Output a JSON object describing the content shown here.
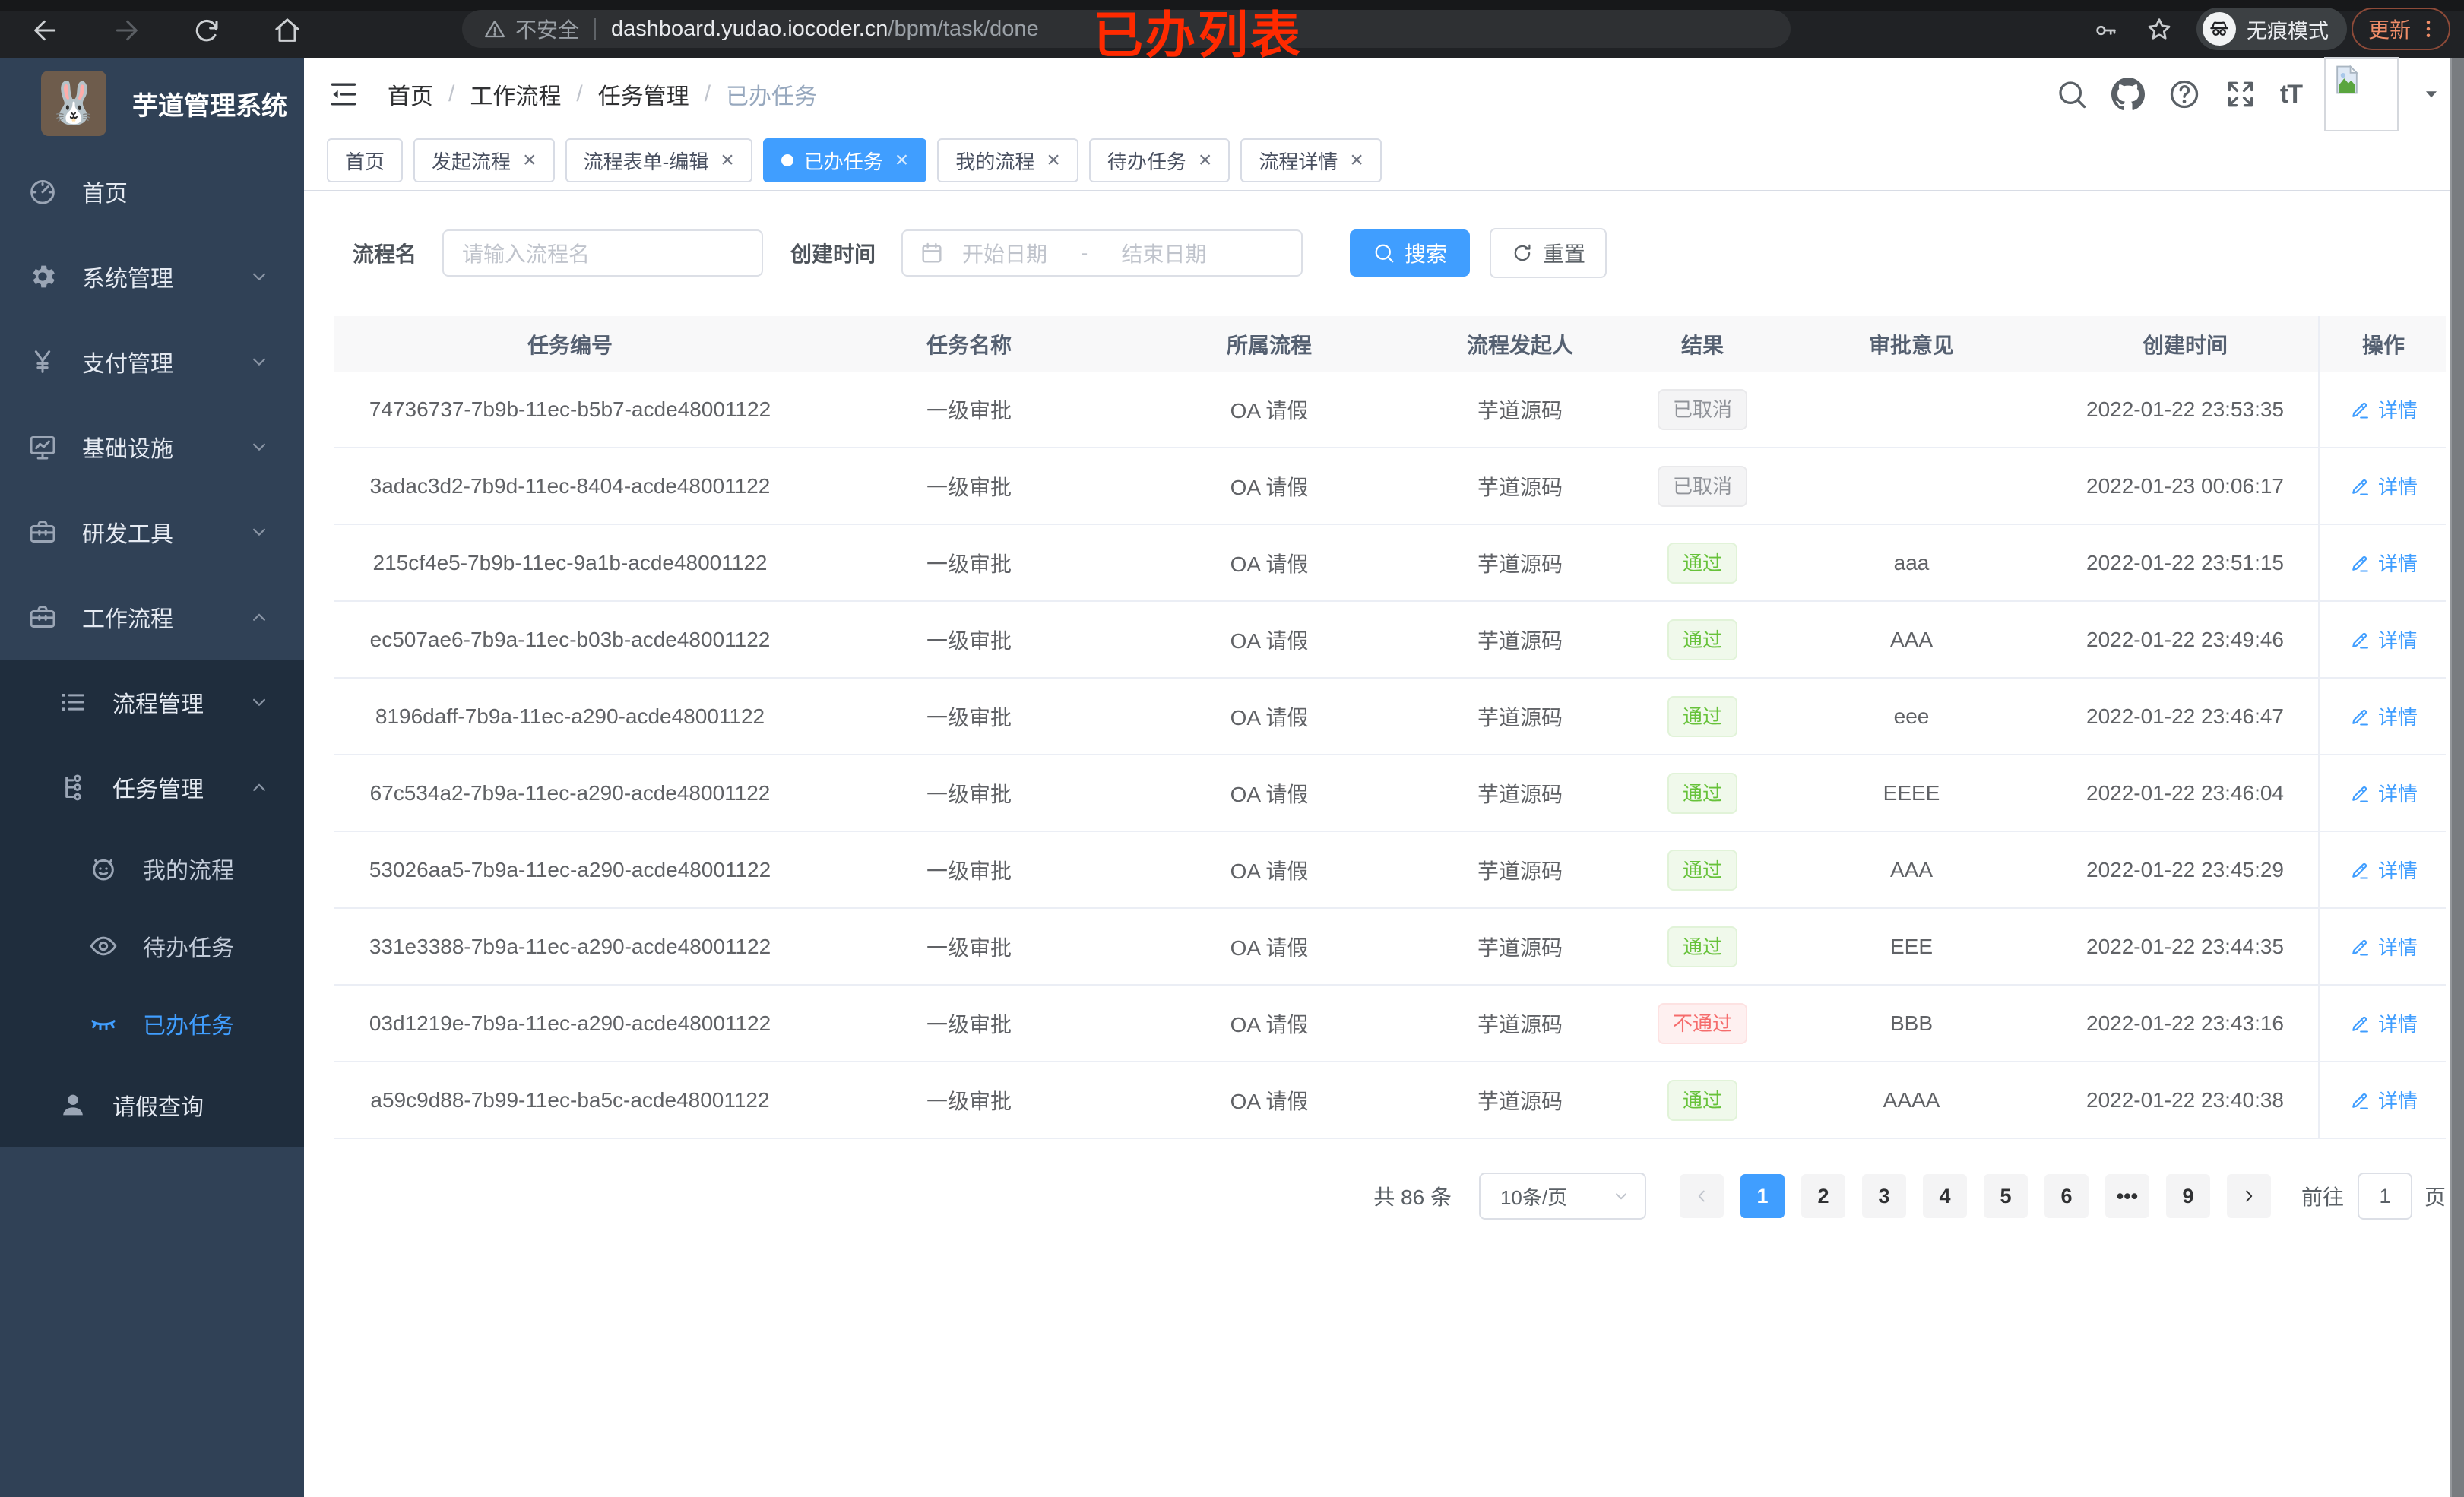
{
  "annotation": {
    "text": "已办列表",
    "color": "#ff2a00"
  },
  "browser": {
    "insecure_label": "不安全",
    "url_host": "dashboard.yudao.iocoder.cn",
    "url_path": "/bpm/task/done",
    "incognito_label": "无痕模式",
    "update_label": "更新"
  },
  "sidebar": {
    "logo_title": "芋道管理系统",
    "logo_icon": "rabbit",
    "items": [
      {
        "key": "home",
        "label": "首页",
        "icon": "dashboard",
        "level": 1
      },
      {
        "key": "system",
        "label": "系统管理",
        "icon": "gear",
        "level": 1,
        "chevron": "down"
      },
      {
        "key": "payment",
        "label": "支付管理",
        "icon": "yen",
        "level": 1,
        "chevron": "down"
      },
      {
        "key": "infra",
        "label": "基础设施",
        "icon": "monitor",
        "level": 1,
        "chevron": "down"
      },
      {
        "key": "devtools",
        "label": "研发工具",
        "icon": "toolbox",
        "level": 1,
        "chevron": "down"
      },
      {
        "key": "workflow",
        "label": "工作流程",
        "icon": "briefcase",
        "level": 1,
        "chevron": "up"
      },
      {
        "key": "process-mgmt",
        "label": "流程管理",
        "icon": "list",
        "level": 2,
        "chevron": "down",
        "dark": true
      },
      {
        "key": "task-mgmt",
        "label": "任务管理",
        "icon": "tree",
        "level": 2,
        "chevron": "up",
        "dark": true
      },
      {
        "key": "my-process",
        "label": "我的流程",
        "icon": "robot",
        "level": 3,
        "dark": true
      },
      {
        "key": "todo-tasks",
        "label": "待办任务",
        "icon": "eye",
        "level": 3,
        "dark": true
      },
      {
        "key": "done-tasks",
        "label": "已办任务",
        "icon": "eye-closed",
        "level": 3,
        "dark": true,
        "active": true
      },
      {
        "key": "leave-query",
        "label": "请假查询",
        "icon": "user",
        "level": 2,
        "dark": true
      }
    ]
  },
  "header": {
    "breadcrumb": [
      "首页",
      "工作流程",
      "任务管理",
      "已办任务"
    ],
    "font_size_icon_text": "tT"
  },
  "tabs": [
    {
      "label": "首页",
      "closable": false,
      "active": false
    },
    {
      "label": "发起流程",
      "closable": true,
      "active": false
    },
    {
      "label": "流程表单-编辑",
      "closable": true,
      "active": false
    },
    {
      "label": "已办任务",
      "closable": true,
      "active": true
    },
    {
      "label": "我的流程",
      "closable": true,
      "active": false
    },
    {
      "label": "待办任务",
      "closable": true,
      "active": false
    },
    {
      "label": "流程详情",
      "closable": true,
      "active": false
    }
  ],
  "filters": {
    "name_label": "流程名",
    "name_placeholder": "请输入流程名",
    "time_label": "创建时间",
    "start_placeholder": "开始日期",
    "range_separator": "-",
    "end_placeholder": "结束日期",
    "search_label": "搜索",
    "reset_label": "重置"
  },
  "table": {
    "columns": [
      "任务编号",
      "任务名称",
      "所属流程",
      "流程发起人",
      "结果",
      "审批意见",
      "创建时间",
      "操作"
    ],
    "action_label": "详情",
    "rows": [
      {
        "id": "74736737-7b9b-11ec-b5b7-acde48001122",
        "name": "一级审批",
        "process": "OA 请假",
        "starter": "芋道源码",
        "result": "已取消",
        "result_type": "info",
        "opinion": "",
        "created": "2022-01-22 23:53:35"
      },
      {
        "id": "3adac3d2-7b9d-11ec-8404-acde48001122",
        "name": "一级审批",
        "process": "OA 请假",
        "starter": "芋道源码",
        "result": "已取消",
        "result_type": "info",
        "opinion": "",
        "created": "2022-01-23 00:06:17"
      },
      {
        "id": "215cf4e5-7b9b-11ec-9a1b-acde48001122",
        "name": "一级审批",
        "process": "OA 请假",
        "starter": "芋道源码",
        "result": "通过",
        "result_type": "success",
        "opinion": "aaa",
        "created": "2022-01-22 23:51:15"
      },
      {
        "id": "ec507ae6-7b9a-11ec-b03b-acde48001122",
        "name": "一级审批",
        "process": "OA 请假",
        "starter": "芋道源码",
        "result": "通过",
        "result_type": "success",
        "opinion": "AAA",
        "created": "2022-01-22 23:49:46"
      },
      {
        "id": "8196daff-7b9a-11ec-a290-acde48001122",
        "name": "一级审批",
        "process": "OA 请假",
        "starter": "芋道源码",
        "result": "通过",
        "result_type": "success",
        "opinion": "eee",
        "created": "2022-01-22 23:46:47"
      },
      {
        "id": "67c534a2-7b9a-11ec-a290-acde48001122",
        "name": "一级审批",
        "process": "OA 请假",
        "starter": "芋道源码",
        "result": "通过",
        "result_type": "success",
        "opinion": "EEEE",
        "created": "2022-01-22 23:46:04"
      },
      {
        "id": "53026aa5-7b9a-11ec-a290-acde48001122",
        "name": "一级审批",
        "process": "OA 请假",
        "starter": "芋道源码",
        "result": "通过",
        "result_type": "success",
        "opinion": "AAA",
        "created": "2022-01-22 23:45:29"
      },
      {
        "id": "331e3388-7b9a-11ec-a290-acde48001122",
        "name": "一级审批",
        "process": "OA 请假",
        "starter": "芋道源码",
        "result": "通过",
        "result_type": "success",
        "opinion": "EEE",
        "created": "2022-01-22 23:44:35"
      },
      {
        "id": "03d1219e-7b9a-11ec-a290-acde48001122",
        "name": "一级审批",
        "process": "OA 请假",
        "starter": "芋道源码",
        "result": "不通过",
        "result_type": "danger",
        "opinion": "BBB",
        "created": "2022-01-22 23:43:16"
      },
      {
        "id": "a59c9d88-7b99-11ec-ba5c-acde48001122",
        "name": "一级审批",
        "process": "OA 请假",
        "starter": "芋道源码",
        "result": "通过",
        "result_type": "success",
        "opinion": "AAAA",
        "created": "2022-01-22 23:40:38"
      }
    ]
  },
  "pagination": {
    "total_label": "共 86 条",
    "page_size_value": "10条/页",
    "pages": [
      "1",
      "2",
      "3",
      "4",
      "5",
      "6",
      "•••",
      "9"
    ],
    "active_page": "1",
    "goto_label": "前往",
    "goto_value": "1",
    "page_suffix": "页"
  },
  "colors": {
    "accent": "#409eff",
    "sidebar_bg": "#304156",
    "submenu_bg": "#1f2d3d",
    "success": "#67c23a",
    "danger": "#f56c6c",
    "info": "#909399",
    "annotation_red": "#ff2a00"
  }
}
